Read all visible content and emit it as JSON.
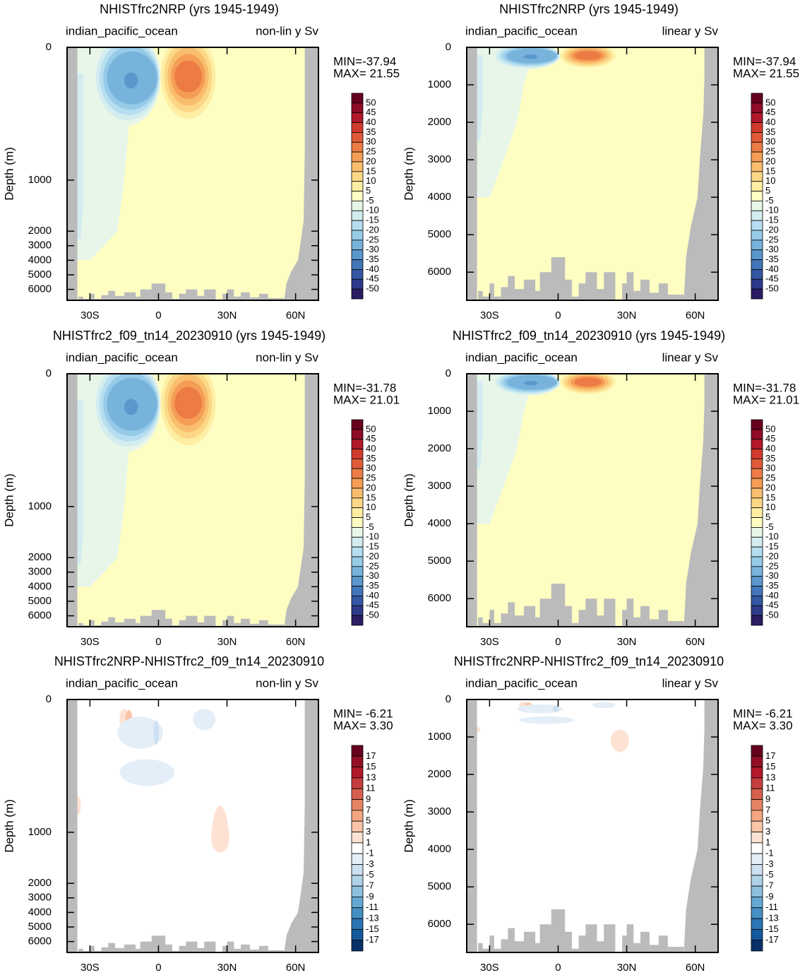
{
  "chart_data": [
    {
      "type": "contour",
      "title": "NHISTfrc2NRP (yrs 1945-1949)",
      "subtitle_left": "indian_pacific_ocean",
      "subtitle_right": "non-lin y Sv",
      "ylabel": "Depth (m)",
      "yscale": "non-linear",
      "ylim": [
        0,
        6750
      ],
      "yticks": [
        0,
        1000,
        2000,
        3000,
        4000,
        5000,
        6000
      ],
      "xlim": [
        -40,
        70
      ],
      "xticks": [
        {
          "value": -30,
          "label": "30S"
        },
        0,
        {
          "value": 30,
          "label": "30N"
        },
        {
          "value": 60,
          "label": "60N"
        }
      ],
      "stats": [
        "MIN=-37.94",
        "MAX= 21.55"
      ],
      "levels": [
        50,
        45,
        40,
        35,
        30,
        25,
        20,
        15,
        10,
        5,
        -5,
        -10,
        -15,
        -20,
        -25,
        -30,
        -35,
        -40,
        -45,
        -50
      ],
      "colors": [
        "#67001f",
        "#8e0c25",
        "#b2182b",
        "#d13b2d",
        "#e05a37",
        "#ec7b45",
        "#f59d55",
        "#f9bd6e",
        "#fbd786",
        "#feeea3",
        "#fefec3",
        "#e8f6ea",
        "#d2ecf0",
        "#b6def0",
        "#96cbe8",
        "#78b3dc",
        "#5a97cd",
        "#4276b9",
        "#3457a3",
        "#2e3a89",
        "#2b1c64"
      ]
    },
    {
      "type": "contour",
      "title": "NHISTfrc2NRP (yrs 1945-1949)",
      "subtitle_left": "indian_pacific_ocean",
      "subtitle_right": "linear y Sv",
      "ylabel": "Depth (m)",
      "yscale": "linear",
      "ylim": [
        0,
        6750
      ],
      "yticks": [
        0,
        1000,
        2000,
        3000,
        4000,
        5000,
        6000
      ],
      "xlim": [
        -40,
        70
      ],
      "xticks": [
        {
          "value": -30,
          "label": "30S"
        },
        0,
        {
          "value": 30,
          "label": "30N"
        },
        {
          "value": 60,
          "label": "60N"
        }
      ],
      "stats": [
        "MIN=-37.94",
        "MAX= 21.55"
      ],
      "levels": [
        50,
        45,
        40,
        35,
        30,
        25,
        20,
        15,
        10,
        5,
        -5,
        -10,
        -15,
        -20,
        -25,
        -30,
        -35,
        -40,
        -45,
        -50
      ],
      "colors": [
        "#67001f",
        "#8e0c25",
        "#b2182b",
        "#d13b2d",
        "#e05a37",
        "#ec7b45",
        "#f59d55",
        "#f9bd6e",
        "#fbd786",
        "#feeea3",
        "#fefec3",
        "#e8f6ea",
        "#d2ecf0",
        "#b6def0",
        "#96cbe8",
        "#78b3dc",
        "#5a97cd",
        "#4276b9",
        "#3457a3",
        "#2e3a89",
        "#2b1c64"
      ]
    },
    {
      "type": "contour",
      "title": "NHISTfrc2_f09_tn14_20230910 (yrs 1945-1949)",
      "subtitle_left": "indian_pacific_ocean",
      "subtitle_right": "non-lin y Sv",
      "ylabel": "Depth (m)",
      "yscale": "non-linear",
      "ylim": [
        0,
        6750
      ],
      "yticks": [
        0,
        1000,
        2000,
        3000,
        4000,
        5000,
        6000
      ],
      "xlim": [
        -40,
        70
      ],
      "xticks": [
        {
          "value": -30,
          "label": "30S"
        },
        0,
        {
          "value": 30,
          "label": "30N"
        },
        {
          "value": 60,
          "label": "60N"
        }
      ],
      "stats": [
        "MIN=-31.78",
        "MAX= 21.01"
      ],
      "levels": [
        50,
        45,
        40,
        35,
        30,
        25,
        20,
        15,
        10,
        5,
        -5,
        -10,
        -15,
        -20,
        -25,
        -30,
        -35,
        -40,
        -45,
        -50
      ],
      "colors": [
        "#67001f",
        "#8e0c25",
        "#b2182b",
        "#d13b2d",
        "#e05a37",
        "#ec7b45",
        "#f59d55",
        "#f9bd6e",
        "#fbd786",
        "#feeea3",
        "#fefec3",
        "#e8f6ea",
        "#d2ecf0",
        "#b6def0",
        "#96cbe8",
        "#78b3dc",
        "#5a97cd",
        "#4276b9",
        "#3457a3",
        "#2e3a89",
        "#2b1c64"
      ]
    },
    {
      "type": "contour",
      "title": "NHISTfrc2_f09_tn14_20230910 (yrs 1945-1949)",
      "subtitle_left": "indian_pacific_ocean",
      "subtitle_right": "linear y Sv",
      "ylabel": "Depth (m)",
      "yscale": "linear",
      "ylim": [
        0,
        6750
      ],
      "yticks": [
        0,
        1000,
        2000,
        3000,
        4000,
        5000,
        6000
      ],
      "xlim": [
        -40,
        70
      ],
      "xticks": [
        {
          "value": -30,
          "label": "30S"
        },
        0,
        {
          "value": 30,
          "label": "30N"
        },
        {
          "value": 60,
          "label": "60N"
        }
      ],
      "stats": [
        "MIN=-31.78",
        "MAX= 21.01"
      ],
      "levels": [
        50,
        45,
        40,
        35,
        30,
        25,
        20,
        15,
        10,
        5,
        -5,
        -10,
        -15,
        -20,
        -25,
        -30,
        -35,
        -40,
        -45,
        -50
      ],
      "colors": [
        "#67001f",
        "#8e0c25",
        "#b2182b",
        "#d13b2d",
        "#e05a37",
        "#ec7b45",
        "#f59d55",
        "#f9bd6e",
        "#fbd786",
        "#feeea3",
        "#fefec3",
        "#e8f6ea",
        "#d2ecf0",
        "#b6def0",
        "#96cbe8",
        "#78b3dc",
        "#5a97cd",
        "#4276b9",
        "#3457a3",
        "#2e3a89",
        "#2b1c64"
      ]
    },
    {
      "type": "contour-diff",
      "title": "NHISTfrc2NRP-NHISTfrc2_f09_tn14_20230910",
      "subtitle_left": "indian_pacific_ocean",
      "subtitle_right": "non-lin y Sv",
      "ylabel": "Depth (m)",
      "yscale": "non-linear",
      "ylim": [
        0,
        6750
      ],
      "yticks": [
        0,
        1000,
        2000,
        3000,
        4000,
        5000,
        6000
      ],
      "xlim": [
        -40,
        70
      ],
      "xticks": [
        {
          "value": -30,
          "label": "30S"
        },
        0,
        {
          "value": 30,
          "label": "30N"
        },
        {
          "value": 60,
          "label": "60N"
        }
      ],
      "stats": [
        "MIN= -6.21",
        "MAX=  3.30"
      ],
      "levels": [
        17,
        15,
        13,
        11,
        9,
        7,
        5,
        3,
        1,
        -1,
        -3,
        -5,
        -7,
        -9,
        -11,
        -13,
        -15,
        -17
      ],
      "colors": [
        "#67001f",
        "#940d26",
        "#b2182b",
        "#c53e3e",
        "#d6604d",
        "#e58465",
        "#f4a582",
        "#f9c4a7",
        "#fde2d3",
        "#ffffff",
        "#e3eef8",
        "#cde0f1",
        "#b0d2e8",
        "#8dc0de",
        "#65a9d3",
        "#4490c4",
        "#2a75b3",
        "#135a9c",
        "#08306b"
      ]
    },
    {
      "type": "contour-diff",
      "title": "NHISTfrc2NRP-NHISTfrc2_f09_tn14_20230910",
      "subtitle_left": "indian_pacific_ocean",
      "subtitle_right": "linear y Sv",
      "ylabel": "Depth (m)",
      "yscale": "linear",
      "ylim": [
        0,
        6750
      ],
      "yticks": [
        0,
        1000,
        2000,
        3000,
        4000,
        5000,
        6000
      ],
      "xlim": [
        -40,
        70
      ],
      "xticks": [
        {
          "value": -30,
          "label": "30S"
        },
        0,
        {
          "value": 30,
          "label": "30N"
        },
        {
          "value": 60,
          "label": "60N"
        }
      ],
      "stats": [
        "MIN= -6.21",
        "MAX=  3.30"
      ],
      "levels": [
        17,
        15,
        13,
        11,
        9,
        7,
        5,
        3,
        1,
        -1,
        -3,
        -5,
        -7,
        -9,
        -11,
        -13,
        -15,
        -17
      ],
      "colors": [
        "#67001f",
        "#940d26",
        "#b2182b",
        "#c53e3e",
        "#d6604d",
        "#e58465",
        "#f4a582",
        "#f9c4a7",
        "#fde2d3",
        "#ffffff",
        "#e3eef8",
        "#cde0f1",
        "#b0d2e8",
        "#8dc0de",
        "#65a9d3",
        "#4490c4",
        "#2a75b3",
        "#135a9c",
        "#08306b"
      ]
    }
  ]
}
